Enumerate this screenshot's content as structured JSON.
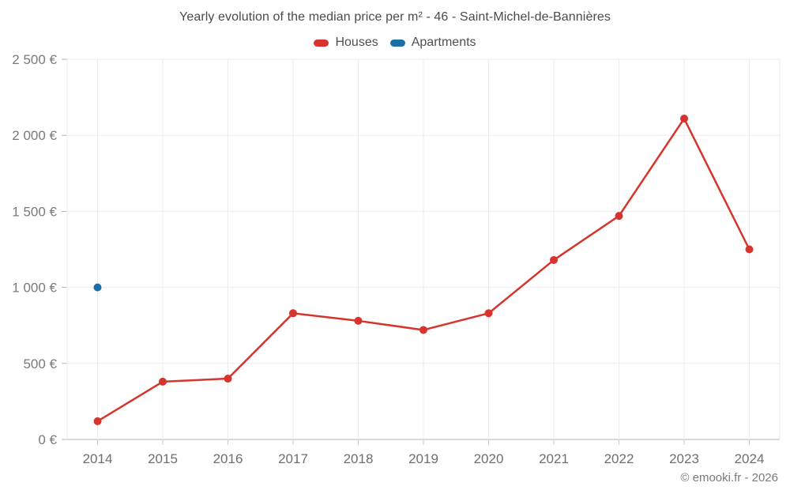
{
  "footer": {
    "text": "© emooki.fr - 2026"
  },
  "chart_data": {
    "type": "line",
    "title": "Yearly evolution of the median price per m² - 46 - Saint-Michel-de-Bannières",
    "x": [
      "2014",
      "2015",
      "2016",
      "2017",
      "2018",
      "2019",
      "2020",
      "2021",
      "2022",
      "2023",
      "2024"
    ],
    "series": [
      {
        "name": "Houses",
        "color": "#d6342c",
        "values": [
          120,
          380,
          400,
          830,
          780,
          720,
          830,
          1180,
          1470,
          2110,
          1250
        ]
      },
      {
        "name": "Apartments",
        "color": "#1c6fa6",
        "values": [
          1000,
          null,
          null,
          null,
          null,
          null,
          null,
          null,
          null,
          null,
          null
        ]
      }
    ],
    "ylim": [
      0,
      2500
    ],
    "ytick_values": [
      0,
      500,
      1000,
      1500,
      2000,
      2500
    ],
    "ytick_labels": [
      "0 €",
      "500 €",
      "1 000 €",
      "1 500 €",
      "2 000 €",
      "2 500 €"
    ],
    "grid": true,
    "legend_position": "top",
    "marker": "circle",
    "colors": {
      "gridline": "#ebebeb",
      "axis_line": "#b3b3b3",
      "tick": "#c9c9c9",
      "x_label": "#6e6e6e",
      "y_label": "#7a7a7a"
    }
  }
}
